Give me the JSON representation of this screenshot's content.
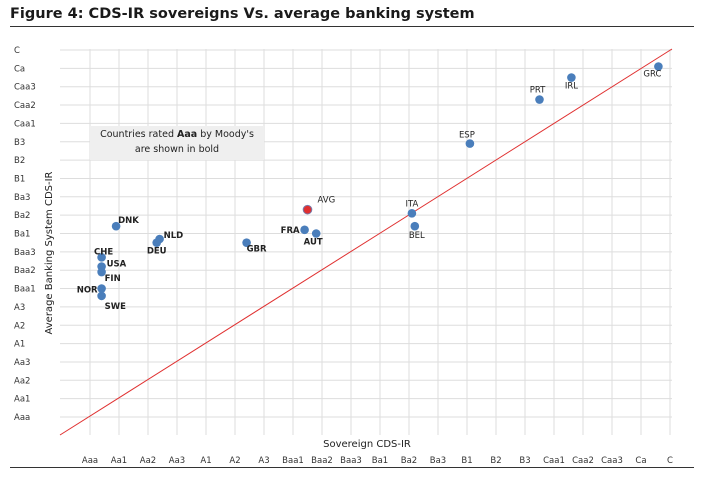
{
  "figure_title": "Figure 4: CDS-IR sovereigns Vs. average banking system",
  "note": {
    "prefix": "Countries rated ",
    "bold": "Aaa",
    "suffix": " by Moody's",
    "line2": "are shown in bold"
  },
  "chart_data": {
    "type": "scatter",
    "title": "Figure 4: CDS-IR sovereigns Vs. average banking system",
    "xlabel": "Sovereign CDS-IR",
    "ylabel": "Average Banking System CDS-IR",
    "scale": [
      "Aaa",
      "Aa1",
      "Aa2",
      "Aa3",
      "A1",
      "A2",
      "A3",
      "Baa1",
      "Baa2",
      "Baa3",
      "Ba1",
      "Ba2",
      "Ba3",
      "B1",
      "B2",
      "B3",
      "Caa1",
      "Caa2",
      "Caa3",
      "Ca",
      "C"
    ],
    "x_ticks": [
      "Aaa",
      "Aa1",
      "Aa2",
      "Aa3",
      "A1",
      "A2",
      "A3",
      "Baa1",
      "Baa2",
      "Baa3",
      "Ba1",
      "Ba2",
      "Ba3",
      "B1",
      "B2",
      "B3",
      "Caa1",
      "Caa2",
      "Caa3",
      "Ca",
      "C"
    ],
    "y_ticks": [
      "Aaa",
      "Aa1",
      "Aa2",
      "Aa3",
      "A1",
      "A2",
      "A3",
      "Baa1",
      "Baa2",
      "Baa3",
      "Ba1",
      "Ba2",
      "Ba3",
      "B1",
      "B2",
      "B3",
      "Caa1",
      "Caa2",
      "Caa3",
      "Ca",
      "C"
    ],
    "grid": true,
    "diagonal": "45-degree line (x = y)",
    "colors": {
      "point": "#4a7ebb",
      "highlight": "#e03030",
      "diagonal": "#e03030",
      "grid": "#dddddd"
    },
    "points": [
      {
        "label": "GRC",
        "x": 19.6,
        "y": 19.1,
        "bold": false
      },
      {
        "label": "IRL",
        "x": 16.6,
        "y": 18.5,
        "bold": false
      },
      {
        "label": "PRT",
        "x": 15.5,
        "y": 17.3,
        "bold": false
      },
      {
        "label": "ESP",
        "x": 13.1,
        "y": 14.9,
        "bold": false
      },
      {
        "label": "ITA",
        "x": 11.1,
        "y": 11.1,
        "bold": false
      },
      {
        "label": "BEL",
        "x": 11.2,
        "y": 10.4,
        "bold": false
      },
      {
        "label": "AVG",
        "x": 7.5,
        "y": 11.3,
        "bold": false,
        "highlight": true
      },
      {
        "label": "FRA",
        "x": 7.4,
        "y": 10.2,
        "bold": true
      },
      {
        "label": "AUT",
        "x": 7.8,
        "y": 10.0,
        "bold": true
      },
      {
        "label": "GBR",
        "x": 5.4,
        "y": 9.5,
        "bold": true
      },
      {
        "label": "NLD",
        "x": 2.4,
        "y": 9.7,
        "bold": true
      },
      {
        "label": "DEU",
        "x": 2.3,
        "y": 9.5,
        "bold": true
      },
      {
        "label": "DNK",
        "x": 0.9,
        "y": 10.4,
        "bold": true
      },
      {
        "label": "CHE",
        "x": 0.4,
        "y": 8.7,
        "bold": true
      },
      {
        "label": "USA",
        "x": 0.4,
        "y": 8.2,
        "bold": true
      },
      {
        "label": "FIN",
        "x": 0.4,
        "y": 7.9,
        "bold": true
      },
      {
        "label": "NOR",
        "x": 0.4,
        "y": 7.0,
        "bold": true
      },
      {
        "label": "SWE",
        "x": 0.4,
        "y": 6.6,
        "bold": true
      }
    ]
  }
}
